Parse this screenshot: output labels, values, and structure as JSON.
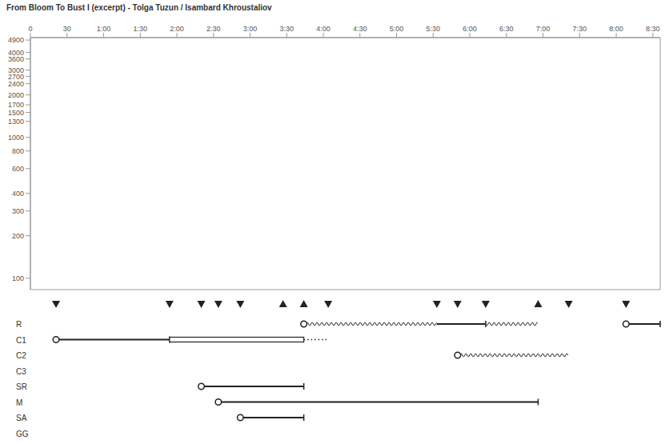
{
  "chart_data": {
    "type": "spectrogram",
    "title": "From Bloom To Bust I (excerpt) - Tolga Tuzun / Isambard Khroustaliov",
    "log": "y",
    "xlim": [
      0,
      516
    ],
    "xticks": [
      0,
      30,
      {
        "value": 60,
        "label": "1:00"
      },
      {
        "value": 90,
        "label": "1:30"
      },
      {
        "value": 120,
        "label": "2:00"
      },
      {
        "value": 150,
        "label": "2:30"
      },
      {
        "value": 180,
        "label": "3:00"
      },
      {
        "value": 210,
        "label": "3:30"
      },
      {
        "value": 240,
        "label": "4:00"
      },
      {
        "value": 270,
        "label": "4:30"
      },
      {
        "value": 300,
        "label": "5:00"
      },
      {
        "value": 330,
        "label": "5:30"
      },
      {
        "value": 360,
        "label": "6:00"
      },
      {
        "value": 390,
        "label": "6:30"
      },
      {
        "value": 420,
        "label": "7:00"
      },
      {
        "value": 450,
        "label": "7:30"
      },
      {
        "value": 480,
        "label": "8:00"
      },
      {
        "value": 510,
        "label": "8:30"
      }
    ],
    "ylim": [
      83,
      5100
    ],
    "yticks": [
      100,
      200,
      300,
      400,
      600,
      800,
      1000,
      1300,
      1500,
      1700,
      2000,
      2400,
      2700,
      3000,
      3600,
      4000,
      4900
    ],
    "markers": [
      {
        "x": 21,
        "marker": "triangle-down"
      },
      {
        "x": 114,
        "marker": "triangle-down"
      },
      {
        "x": 140,
        "marker": "triangle-down"
      },
      {
        "x": 154,
        "marker": "triangle-down"
      },
      {
        "x": 172,
        "marker": "triangle-down"
      },
      {
        "x": 207,
        "marker": "triangle-up"
      },
      {
        "x": 224,
        "marker": "triangle-up"
      },
      {
        "x": 244,
        "marker": "triangle-down"
      },
      {
        "x": 333,
        "marker": "triangle-down"
      },
      {
        "x": 350,
        "marker": "triangle-down"
      },
      {
        "x": 373,
        "marker": "triangle-down"
      },
      {
        "x": 416,
        "marker": "triangle-up"
      },
      {
        "x": 441,
        "marker": "triangle-down"
      },
      {
        "x": 488,
        "marker": "triangle-down"
      }
    ],
    "lanes": [
      {
        "name": "R",
        "segments": [
          {
            "start": 224,
            "end": 333,
            "line_style": "wavy",
            "marker": "circle"
          },
          {
            "start": 333,
            "end": 373,
            "line_style": "solid"
          },
          {
            "start": 373,
            "end": 416,
            "line_style": "wavy"
          },
          {
            "start": 488,
            "end": 516,
            "line_style": "solid",
            "marker": "circle"
          }
        ]
      },
      {
        "name": "C1",
        "segments": [
          {
            "start": 21,
            "end": 114,
            "line_style": "solid",
            "marker": "circle"
          },
          {
            "start": 114,
            "end": 224,
            "line_style": "hollow"
          },
          {
            "start": 224,
            "end": 244,
            "line_style": "dotted"
          }
        ]
      },
      {
        "name": "C2",
        "segments": [
          {
            "start": 350,
            "end": 441,
            "line_style": "wavy",
            "marker": "circle"
          }
        ]
      },
      {
        "name": "C3",
        "segments": []
      },
      {
        "name": "SR",
        "segments": [
          {
            "start": 140,
            "end": 224,
            "line_style": "solid",
            "marker": "circle"
          }
        ]
      },
      {
        "name": "M",
        "segments": [
          {
            "start": 154,
            "end": 416,
            "line_style": "solid",
            "marker": "circle"
          }
        ]
      },
      {
        "name": "SA",
        "segments": [
          {
            "start": 172,
            "end": 224,
            "line_style": "solid",
            "marker": "circle"
          }
        ]
      },
      {
        "name": "GG",
        "segments": []
      }
    ]
  }
}
